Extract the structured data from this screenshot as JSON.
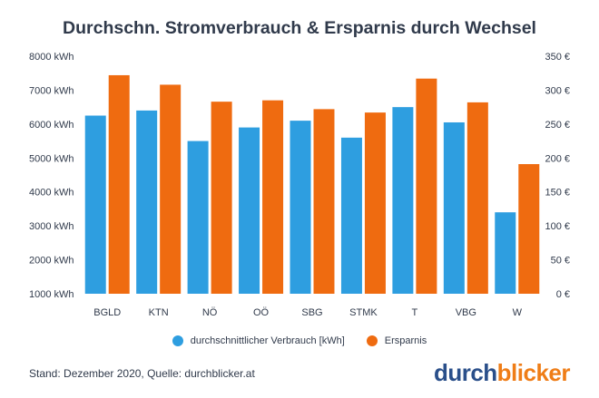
{
  "title": "Durchschn. Stromverbrauch & Ersparnis durch Wechsel",
  "source": "Stand: Dezember 2020, Quelle: durchblicker.at",
  "logo": {
    "part1": "durch",
    "part2": "blicker"
  },
  "colors": {
    "consumption": "#2e9ee0",
    "savings": "#ef6b10",
    "text": "#303a4b",
    "logo_blue": "#2a4f8a",
    "logo_orange": "#ef7d17"
  },
  "chart_data": {
    "type": "bar",
    "title": "Durchschn. Stromverbrauch & Ersparnis durch Wechsel",
    "categories": [
      "BGLD",
      "KTN",
      "NÖ",
      "OÖ",
      "SBG",
      "STMK",
      "T",
      "VBG",
      "W"
    ],
    "series": [
      {
        "name": "durchschnittlicher Verbrauch [kWh]",
        "axis": "left",
        "values": [
          6250,
          6400,
          5500,
          5900,
          6100,
          5600,
          6500,
          6050,
          3400
        ]
      },
      {
        "name": "Ersparnis",
        "axis": "right",
        "values": [
          322,
          308,
          283,
          285,
          272,
          267,
          317,
          282,
          191
        ]
      }
    ],
    "left_axis": {
      "min": 1000,
      "max": 8000,
      "ticks": [
        1000,
        2000,
        3000,
        4000,
        5000,
        6000,
        7000,
        8000
      ],
      "suffix": " kWh"
    },
    "right_axis": {
      "min": 0,
      "max": 350,
      "ticks": [
        0,
        50,
        100,
        150,
        200,
        250,
        300,
        350
      ],
      "suffix": " €"
    },
    "legend": [
      "durchschnittlicher Verbrauch [kWh]",
      "Ersparnis"
    ],
    "legend_position": "bottom"
  }
}
